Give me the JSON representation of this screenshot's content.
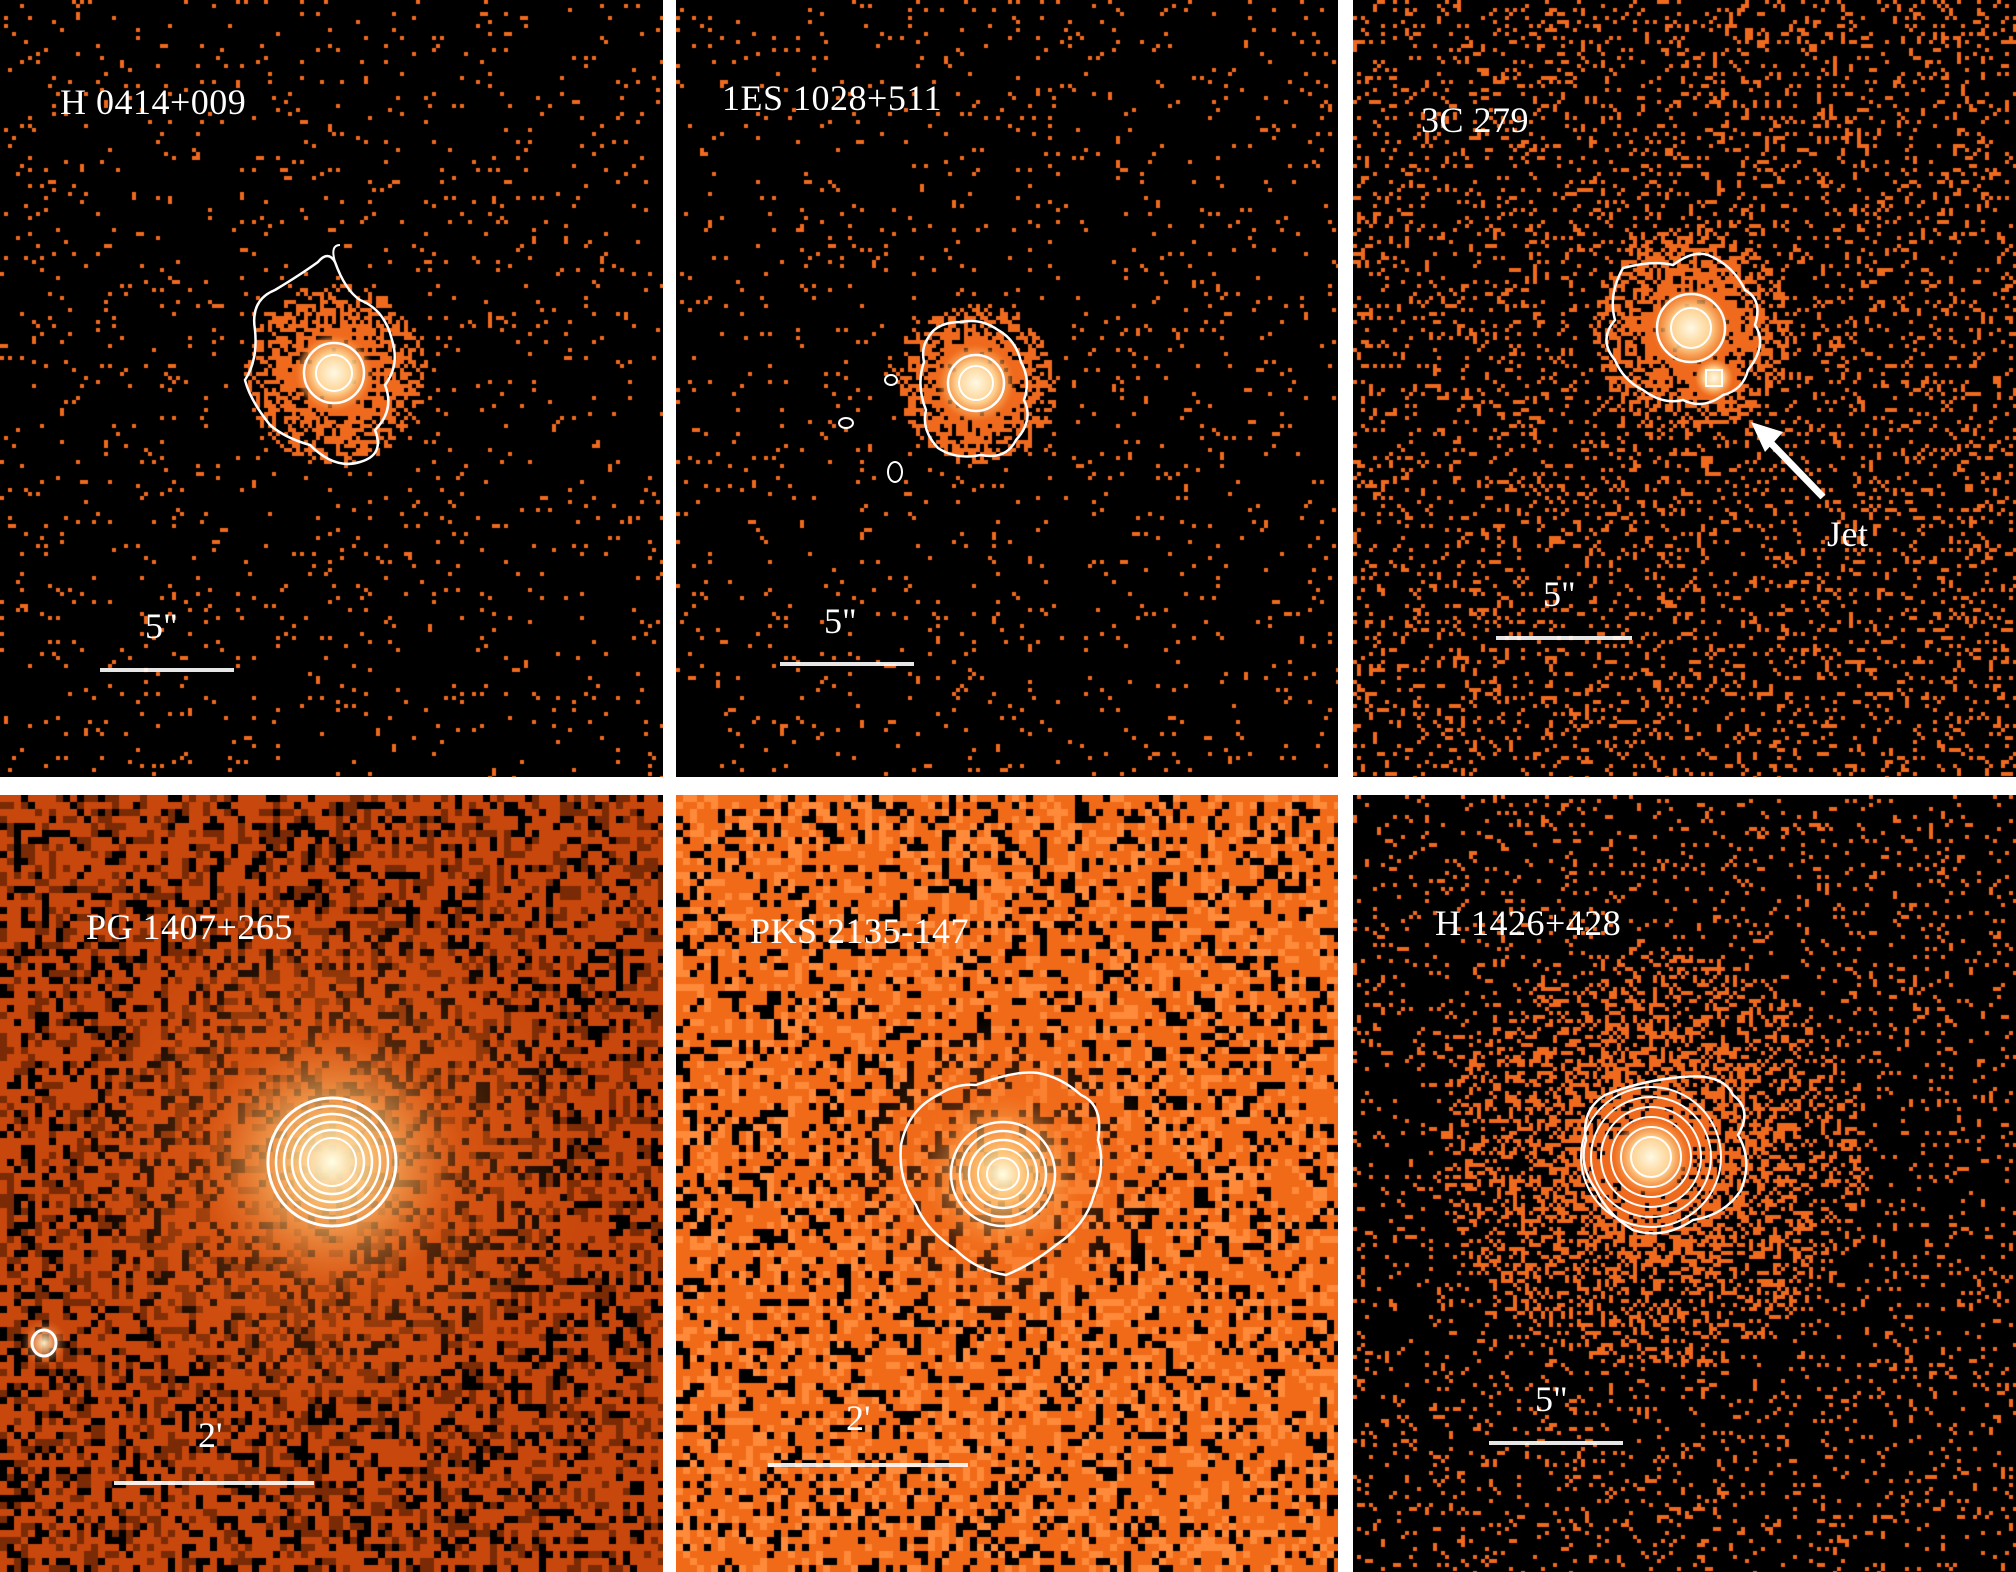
{
  "figure": {
    "panels": [
      {
        "id": "p1",
        "source": "H 0414+009",
        "scale": "5\"",
        "background": "sparse"
      },
      {
        "id": "p2",
        "source": "1ES 1028+511",
        "scale": "5\"",
        "background": "sparse"
      },
      {
        "id": "p3",
        "source": "3C 279",
        "scale": "5\"",
        "background": "sparse",
        "annotation": "Jet"
      },
      {
        "id": "p4",
        "source": "PG 1407+265",
        "scale": "2'",
        "background": "dense"
      },
      {
        "id": "p5",
        "source": "PKS 2135-147",
        "scale": "2'",
        "background": "dense"
      },
      {
        "id": "p6",
        "source": "H 1426+428",
        "scale": "5\"",
        "background": "sparse"
      }
    ]
  },
  "colors": {
    "background": "#000000",
    "dense_background": "#e8540f",
    "pixel": "#f06a1e",
    "contour": "#ffffff",
    "divider": "#ffffff"
  }
}
